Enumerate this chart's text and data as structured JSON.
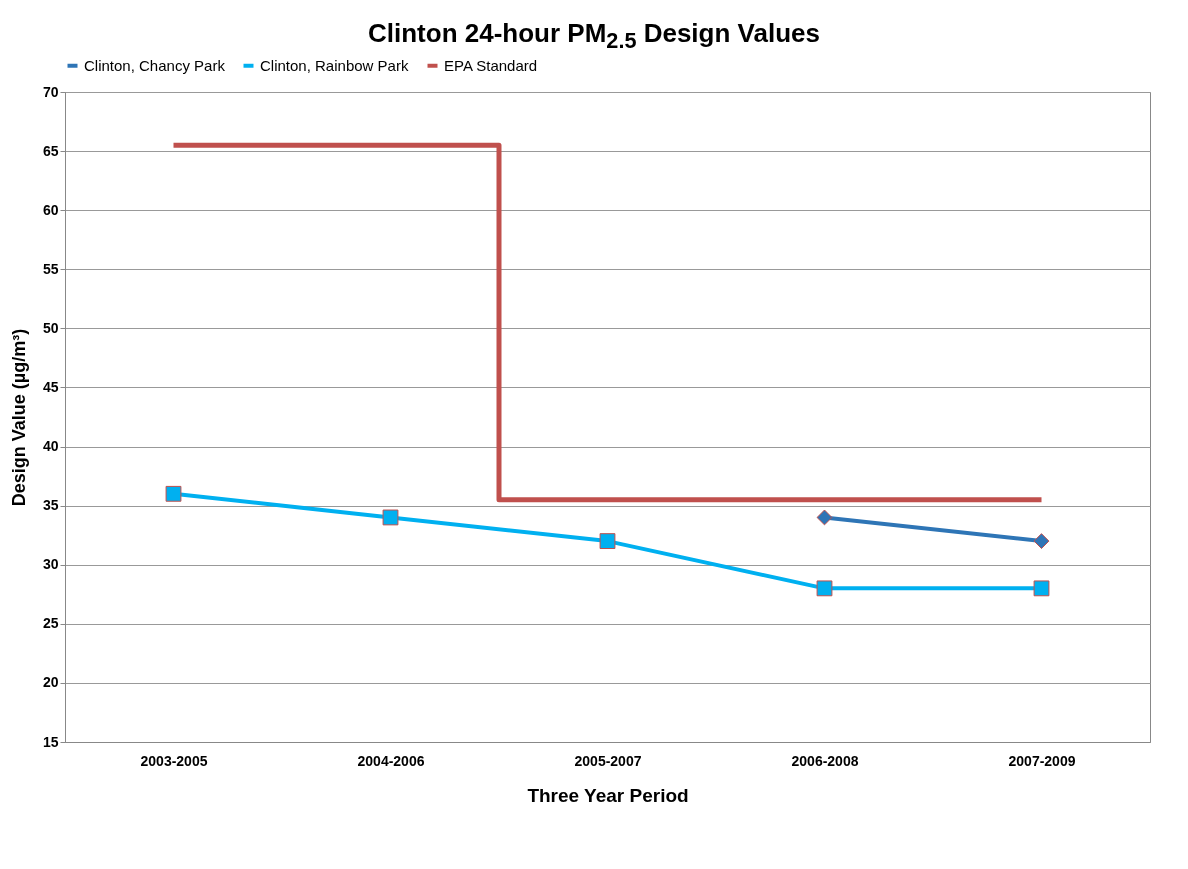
{
  "chart_data": {
    "type": "line",
    "title": "Clinton 24-hour PM$_{2.5}$ Design Values",
    "xlabel": "Three Year Period",
    "ylabel": "Design Value (µg/m³)",
    "categories": [
      "2003-2005",
      "2004-2006",
      "2005-2007",
      "2006-2008",
      "2007-2009"
    ],
    "series": [
      {
        "name": "Clinton, Chancy Park",
        "color": "#2e75b6",
        "marker": "diamond",
        "values": [
          null,
          null,
          null,
          34,
          32
        ]
      },
      {
        "name": "Clinton, Rainbow Park",
        "color": "#00b0f0",
        "marker": "square",
        "values": [
          36,
          34,
          32,
          28,
          28
        ]
      },
      {
        "name": "EPA Standard",
        "type": "step",
        "color": "#c0504d",
        "marker": "none",
        "values": [
          65.5,
          65.5,
          35.5,
          35.5,
          35.5
        ]
      }
    ],
    "ylim": [
      15,
      70
    ],
    "yticks": [
      15,
      20,
      25,
      30,
      35,
      40,
      45,
      50,
      55,
      60,
      65,
      70
    ],
    "grid": "y",
    "legend": "top"
  }
}
